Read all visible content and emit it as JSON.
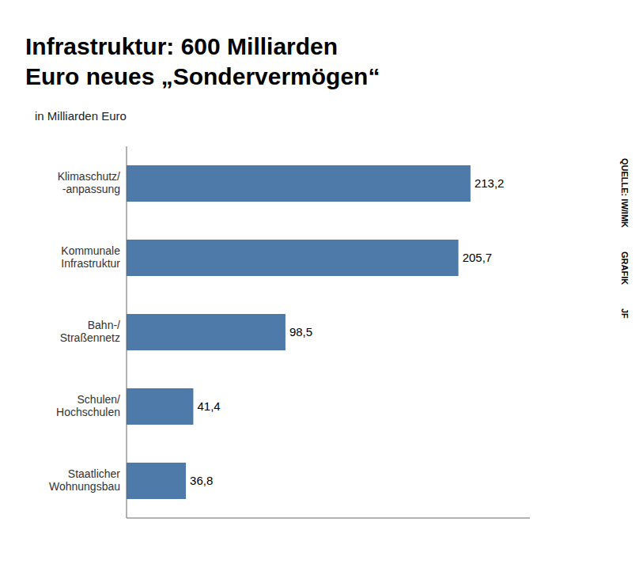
{
  "chart_data": {
    "type": "bar",
    "orientation": "horizontal",
    "title": "Infrastruktur: 600 Milliarden\nEuro neues „Sondervermögen“",
    "subtitle": "in Milliarden Euro",
    "categories": [
      "Klimaschutz/\n-anpassung",
      "Kommunale\nInfrastruktur",
      "Bahn-/\nStraßennetz",
      "Schulen/\nHochschulen",
      "Staatlicher\nWohnungsbau"
    ],
    "values": [
      213.2,
      205.7,
      98.5,
      41.4,
      36.8
    ],
    "value_labels": [
      "213,2",
      "205,7",
      "98,5",
      "41,4",
      "36,8"
    ],
    "data_labels": true,
    "color": "#4d7aa8",
    "xlim": [
      0,
      250
    ],
    "tick_labels": "y",
    "grid": false,
    "annotations": [
      "QUELLE: IW/IMK",
      "GRAFIK",
      "JF"
    ]
  }
}
